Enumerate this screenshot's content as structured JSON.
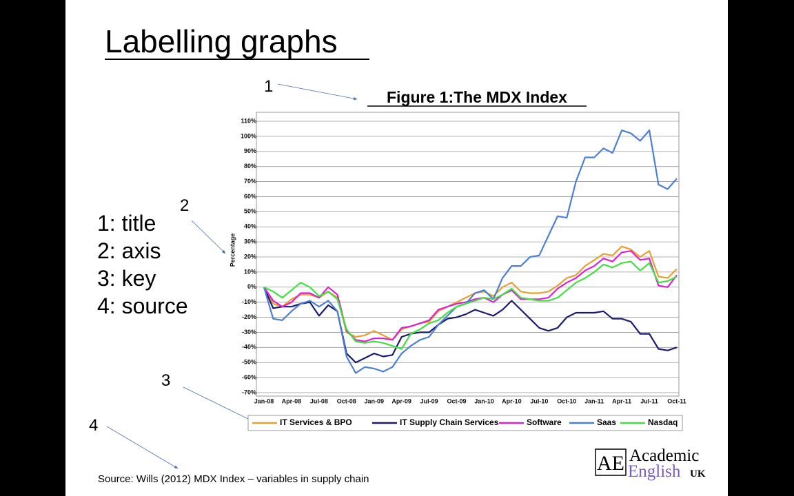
{
  "slide": {
    "title": "Labelling graphs",
    "callouts": [
      "1",
      "2",
      "3",
      "4"
    ],
    "list": [
      "1: title",
      "2: axis",
      "3: key",
      "4: source"
    ],
    "source": "Source: Wills (2012) MDX Index – variables in supply chain",
    "logo": {
      "mark": "AE",
      "line1": "Academic",
      "line2": "English",
      "suffix": "UK"
    }
  },
  "chart_data": {
    "type": "line",
    "title": "Figure 1:The MDX Index",
    "y_label": "Percentage",
    "categories": [
      "Jan-08",
      null,
      null,
      "Apr-08",
      null,
      null,
      "Jul-08",
      null,
      null,
      "Oct-08",
      null,
      null,
      "Jan-09",
      null,
      null,
      "Apr-09",
      null,
      null,
      "Jul-09",
      null,
      null,
      "Oct-09",
      null,
      null,
      "Jan-10",
      null,
      null,
      "Apr-10",
      null,
      null,
      "Jul-10",
      null,
      null,
      "Oct-10",
      null,
      null,
      "Jan-11",
      null,
      null,
      "Apr-11",
      null,
      null,
      "Jul-11",
      null,
      null,
      "Oct-11"
    ],
    "series": [
      {
        "name": "IT Services & BPO",
        "color": "#e8a030",
        "values": [
          0,
          -11,
          -13,
          -8,
          -5,
          -5,
          -7,
          -3,
          -7,
          -30,
          -33,
          -32,
          -29,
          -32,
          -35,
          -28,
          -26,
          -24,
          -23,
          -16,
          -13,
          -10,
          -7,
          -4,
          -3,
          -6,
          0,
          3,
          -3,
          -4,
          -4,
          -3,
          1,
          6,
          8,
          14,
          18,
          22,
          21,
          27,
          25,
          20,
          24,
          7,
          6,
          12
        ]
      },
      {
        "name": "IT Supply Chain Services",
        "color": "#1a1a6e",
        "values": [
          0,
          -14,
          -13,
          -13,
          -11,
          -10,
          -19,
          -12,
          -16,
          -44,
          -50,
          -47,
          -44,
          -46,
          -45,
          -33,
          -31,
          -30,
          -30,
          -25,
          -21,
          -20,
          -18,
          -15,
          -17,
          -19,
          -15,
          -9,
          -15,
          -21,
          -27,
          -29,
          -27,
          -20,
          -17,
          -17,
          -17,
          -16,
          -21,
          -21,
          -23,
          -31,
          -31,
          -41,
          -42,
          -40
        ]
      },
      {
        "name": "Software",
        "color": "#e020d0",
        "values": [
          0,
          -9,
          -13,
          -10,
          -4,
          -4,
          -7,
          0,
          -5,
          -29,
          -35,
          -36,
          -34,
          -34,
          -35,
          -27,
          -26,
          -24,
          -22,
          -15,
          -13,
          -11,
          -10,
          -8,
          -7,
          -10,
          -5,
          -2,
          -8,
          -8,
          -8,
          -7,
          -1,
          3,
          6,
          11,
          14,
          19,
          17,
          23,
          24,
          18,
          19,
          1,
          0,
          8
        ]
      },
      {
        "name": "Saas",
        "color": "#4a7fd6",
        "values": [
          0,
          -21,
          -22,
          -16,
          -11,
          -9,
          -13,
          -9,
          -16,
          -46,
          -57,
          -53,
          -54,
          -56,
          -53,
          -44,
          -39,
          -35,
          -33,
          -25,
          -19,
          -13,
          -11,
          -4,
          -2,
          -8,
          6,
          14,
          14,
          20,
          21,
          34,
          47,
          46,
          70,
          86,
          86,
          92,
          89,
          104,
          102,
          97,
          104,
          68,
          65,
          72
        ]
      },
      {
        "name": "Nasdaq",
        "color": "#40e040",
        "values": [
          0,
          -3,
          -7,
          -2,
          3,
          0,
          -6,
          -3,
          -8,
          -28,
          -36,
          -37,
          -36,
          -37,
          -39,
          -41,
          -31,
          -28,
          -24,
          -22,
          -17,
          -13,
          -11,
          -9,
          -7,
          -8,
          -5,
          -1,
          -7,
          -8,
          -9,
          -9,
          -7,
          -2,
          3,
          6,
          10,
          15,
          13,
          16,
          17,
          11,
          16,
          3,
          4,
          7
        ]
      }
    ],
    "ylim": [
      -70,
      110
    ],
    "yticks": [
      {
        "value": 110,
        "label": "110%"
      },
      {
        "value": 100,
        "label": "100%"
      },
      {
        "value": 90,
        "label": "90%"
      },
      {
        "value": 80,
        "label": "80%"
      },
      {
        "value": 70,
        "label": "70%"
      },
      {
        "value": 60,
        "label": "60%"
      },
      {
        "value": 50,
        "label": "50%"
      },
      {
        "value": 40,
        "label": "40%"
      },
      {
        "value": 30,
        "label": "30%"
      },
      {
        "value": 20,
        "label": "20%"
      },
      {
        "value": 10,
        "label": "10%"
      },
      {
        "value": 0,
        "label": "0%"
      },
      {
        "value": -10,
        "label": "-10%"
      },
      {
        "value": -20,
        "label": "-20%"
      },
      {
        "value": -30,
        "label": "-30%"
      },
      {
        "value": -40,
        "label": "-40%"
      },
      {
        "value": -50,
        "label": "-50%"
      },
      {
        "value": -60,
        "label": "-60%"
      },
      {
        "value": -70,
        "label": "-70%"
      }
    ],
    "grid": true,
    "legend": "bottom"
  }
}
